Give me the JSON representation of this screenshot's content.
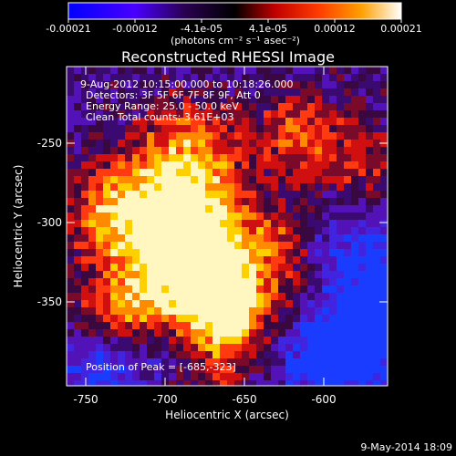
{
  "image": {
    "title": "Reconstructed RHESSI Image",
    "colorbar": {
      "ticks": [
        "-0.00021",
        "-0.00012",
        "-4.1e-05",
        "4.1e-05",
        "0.00012",
        "0.00021"
      ],
      "unit_label": "(photons cm⁻² s⁻¹ asec⁻²)",
      "palette": [
        "#0000ff",
        "#5a00ff",
        "#3a0068",
        "#000000",
        "#ff2200",
        "#ff8800",
        "#ffd000",
        "#ffffff"
      ]
    },
    "annotation": {
      "line1": "9-Aug-2012 10:15:00.000 to 10:18:26.000",
      "line2": "Detectors: 3F 5F 6F 7F 8F 9F, Att 0",
      "line3": "Energy Range: 25.0 - 50.0 keV",
      "line4": "Clean     Total counts: 3.61E+03"
    },
    "peak_label": "Position of Peak = [-685,-323]",
    "x_axis": {
      "label": "Heliocentric X (arcsec)",
      "ticks": [
        "-750",
        "-700",
        "-650",
        "-600"
      ]
    },
    "y_axis": {
      "label": "Heliocentric Y (arcsec)",
      "ticks": [
        "-250",
        "-300",
        "-350"
      ]
    },
    "footer_timestamp": "9-May-2014 18:09"
  }
}
